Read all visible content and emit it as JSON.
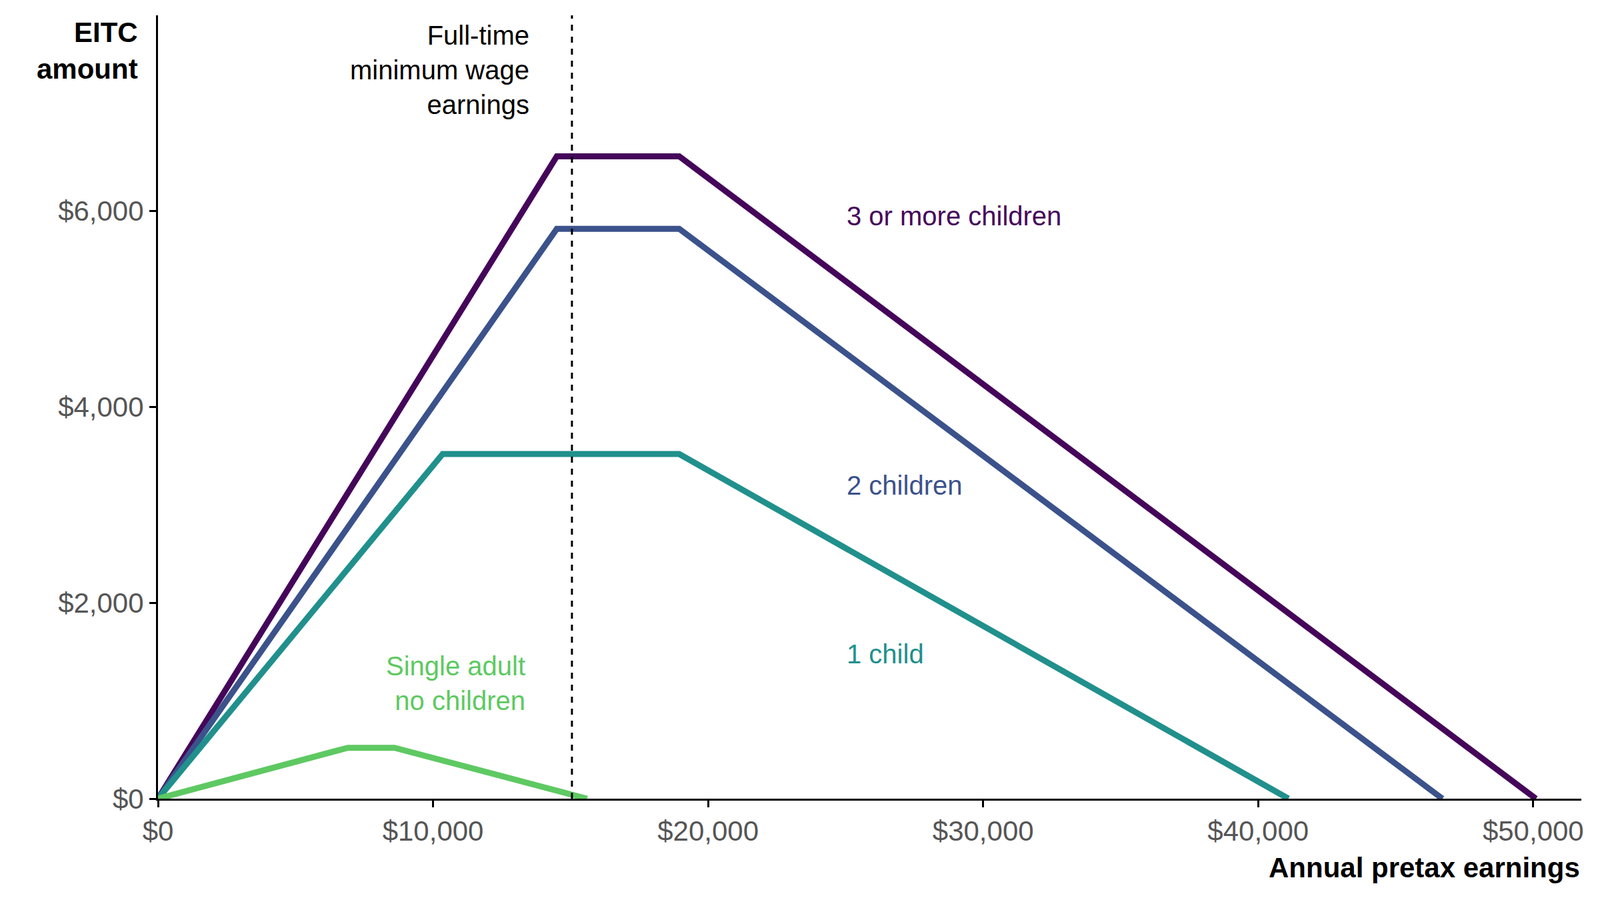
{
  "chart_data": {
    "type": "line",
    "x_label": "Annual pretax earnings",
    "y_label": "EITC\namount",
    "xlim": [
      0,
      51750
    ],
    "xticks": [
      {
        "value": 0,
        "label": "$0"
      },
      {
        "value": 10000,
        "label": "$10,000"
      },
      {
        "value": 20000,
        "label": "$20,000"
      },
      {
        "value": 30000,
        "label": "$30,000"
      },
      {
        "value": 40000,
        "label": "$40,000"
      },
      {
        "value": 50000,
        "label": "$50,000"
      }
    ],
    "ylim": [
      0,
      8000
    ],
    "yticks": [
      {
        "value": 0,
        "label": "$0"
      },
      {
        "value": 2000,
        "label": "$2,000"
      },
      {
        "value": 4000,
        "label": "$4,000"
      },
      {
        "value": 6000,
        "label": "$6,000"
      }
    ],
    "grid": false,
    "series": [
      {
        "name": "3 or more children",
        "color": "#45065a",
        "x": [
          0,
          14500,
          18950,
          50100
        ],
        "values": [
          0,
          6560,
          6560,
          0
        ]
      },
      {
        "name": "2 children",
        "color": "#3b528b",
        "x": [
          0,
          14500,
          18950,
          46700
        ],
        "values": [
          0,
          5820,
          5820,
          0
        ]
      },
      {
        "name": "1 child",
        "color": "#21908c",
        "x": [
          0,
          10350,
          18950,
          41100
        ],
        "values": [
          0,
          3520,
          3520,
          0
        ]
      },
      {
        "name": "Single adult\nno children",
        "color": "#5ec962",
        "x": [
          0,
          6900,
          8600,
          15600
        ],
        "values": [
          0,
          520,
          520,
          0
        ]
      }
    ],
    "annotations": [
      {
        "text": "Full-time\nminimum wage\nearnings",
        "x": 15050,
        "line_style": "dashed"
      }
    ]
  }
}
